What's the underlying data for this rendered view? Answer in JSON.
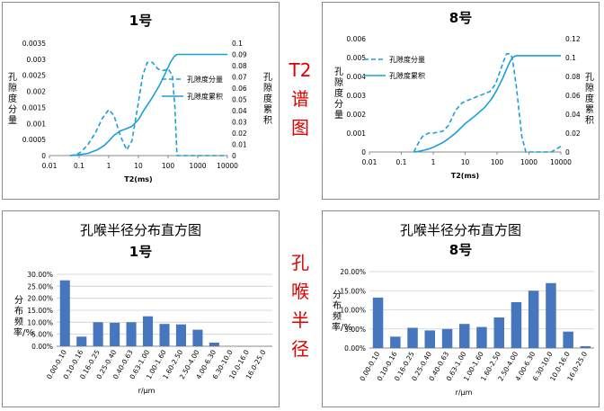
{
  "side_labels": {
    "t2": [
      "T2",
      "谱",
      "图"
    ],
    "pore": [
      "孔",
      "喉",
      "半",
      "径"
    ]
  },
  "colors": {
    "series": "#1a9fd9",
    "bar": "#4677be",
    "side_label": "#e00000"
  },
  "chart_data": [
    {
      "id": "t2-1",
      "type": "line",
      "title": "1号",
      "xlabel": "T2(ms)",
      "ylabel": "孔隙度分量",
      "y2label": "孔隙度累积",
      "xscale": "log",
      "xlim": [
        0.01,
        10000
      ],
      "xticks": [
        "0.01",
        "0.1",
        "1",
        "10",
        "100",
        "1000",
        "10000"
      ],
      "ylim": [
        0,
        0.0035
      ],
      "yticks": [
        "0",
        "0.0005",
        "0.001",
        "0.0015",
        "0.002",
        "0.0025",
        "0.003",
        "0.0035"
      ],
      "y2lim": [
        0,
        0.1
      ],
      "y2ticks": [
        "0",
        "0.01",
        "0.02",
        "0.03",
        "0.04",
        "0.05",
        "0.06",
        "0.07",
        "0.08",
        "0.09",
        "0.1"
      ],
      "legend": [
        "孔隙度分量",
        "孔隙度累积"
      ],
      "series": [
        {
          "name": "孔隙度分量",
          "style": "dashed",
          "axis": "left",
          "x": [
            0.05,
            0.08,
            0.12,
            0.2,
            0.35,
            0.6,
            1.0,
            1.5,
            2.5,
            4.0,
            6.0,
            9.0,
            14,
            20,
            30,
            45,
            70,
            100,
            140,
            170,
            200,
            300,
            1000,
            10000
          ],
          "y": [
            0,
            3e-05,
            0.00012,
            0.00035,
            0.0007,
            0.00115,
            0.00143,
            0.00125,
            0.0006,
            0.00018,
            0.00045,
            0.0014,
            0.0025,
            0.0029,
            0.0029,
            0.0027,
            0.00265,
            0.0027,
            0.0025,
            0.0015,
            0,
            0,
            0,
            0
          ]
        },
        {
          "name": "孔隙度累积",
          "style": "solid",
          "axis": "right",
          "x": [
            0.05,
            0.1,
            0.2,
            0.4,
            0.7,
            1.0,
            1.5,
            2.5,
            4.0,
            6.0,
            10,
            15,
            20,
            30,
            50,
            80,
            120,
            160,
            200,
            300,
            10000
          ],
          "y": [
            0,
            0.0008,
            0.002,
            0.005,
            0.009,
            0.013,
            0.018,
            0.022,
            0.024,
            0.026,
            0.032,
            0.04,
            0.045,
            0.052,
            0.062,
            0.073,
            0.083,
            0.088,
            0.09,
            0.09,
            0.09
          ]
        }
      ]
    },
    {
      "id": "t2-8",
      "type": "line",
      "title": "8号",
      "xlabel": "T2(ms)",
      "ylabel": "孔隙度分量",
      "y2label": "孔隙度累积",
      "xscale": "log",
      "xlim": [
        0.01,
        10000
      ],
      "xticks": [
        "0.01",
        "0.1",
        "1",
        "10",
        "100",
        "1000",
        "10000"
      ],
      "ylim": [
        0,
        0.006
      ],
      "yticks": [
        "0",
        "0.001",
        "0.002",
        "0.003",
        "0.004",
        "0.005",
        "0.006"
      ],
      "y2lim": [
        0,
        0.12
      ],
      "y2ticks": [
        "0",
        "0.02",
        "0.04",
        "0.06",
        "0.08",
        "0.1",
        "0.12"
      ],
      "legend": [
        "孔隙度分量",
        "孔隙度累积"
      ],
      "series": [
        {
          "name": "孔隙度分量",
          "style": "dashed",
          "axis": "left",
          "x": [
            0.25,
            0.3,
            0.45,
            0.7,
            1.0,
            2.0,
            3.0,
            5.0,
            8.0,
            15,
            30,
            60,
            90,
            120,
            160,
            200,
            250,
            300,
            400,
            600,
            800,
            1000,
            5000,
            10000
          ],
          "y": [
            0,
            0.0003,
            0.0008,
            0.001,
            0.001,
            0.0011,
            0.0014,
            0.0022,
            0.0026,
            0.0028,
            0.003,
            0.0032,
            0.0036,
            0.0042,
            0.0048,
            0.0052,
            0.0052,
            0.005,
            0.0035,
            0.0008,
            0,
            0,
            0,
            0.0003
          ]
        },
        {
          "name": "孔隙度累积",
          "style": "solid",
          "axis": "right",
          "x": [
            0.25,
            0.4,
            0.7,
            1.0,
            2.0,
            3.0,
            5.0,
            10,
            20,
            40,
            70,
            100,
            150,
            200,
            250,
            300,
            400,
            600,
            1000,
            10000
          ],
          "y": [
            0,
            0.001,
            0.003,
            0.005,
            0.01,
            0.014,
            0.02,
            0.03,
            0.038,
            0.047,
            0.057,
            0.066,
            0.078,
            0.088,
            0.095,
            0.1,
            0.102,
            0.102,
            0.102,
            0.102
          ]
        }
      ]
    },
    {
      "id": "pore-1",
      "type": "bar",
      "title": "孔喉半径分布直方图",
      "subtitle": "1号",
      "xlabel": "r/μm",
      "ylabel": "分布频率/%",
      "ylim": [
        0,
        30
      ],
      "yticks": [
        "0.00%",
        "5.00%",
        "10.00%",
        "15.00%",
        "20.00%",
        "25.00%",
        "30.00%"
      ],
      "categories": [
        "0.00-0.10",
        "0.10-0.16",
        "0.16-0.25",
        "0.25-0.40",
        "0.40-0.63",
        "0.63-1.00",
        "1.00-1.60",
        "1.60-2.50",
        "2.50-4.00",
        "4.00-6.30",
        "6.30-10.0",
        "10.0-16.0",
        "16.0-25.0"
      ],
      "values": [
        27.5,
        4.0,
        10.0,
        9.8,
        10.0,
        12.5,
        9.3,
        9.1,
        6.9,
        1.5,
        0,
        0,
        0
      ]
    },
    {
      "id": "pore-8",
      "type": "bar",
      "title": "孔喉半径分布直方图",
      "subtitle": "8号",
      "xlabel": "r/μm",
      "ylabel": "分布频率/%",
      "ylim": [
        0,
        20
      ],
      "yticks": [
        "0.00%",
        "5.00%",
        "10.00%",
        "15.00%",
        "20.00%"
      ],
      "categories": [
        "0.00-0.10",
        "0.10-0.16",
        "0.16-0.25",
        "0.25-0.40",
        "0.40-0.63",
        "0.63-1.00",
        "1.00-1.60",
        "1.60-2.50",
        "2.50-4.00",
        "4.00-6.30",
        "6.30-10.0",
        "10.0-16.0",
        "16.0-25.0"
      ],
      "values": [
        13.2,
        3.0,
        5.3,
        4.6,
        5.0,
        6.3,
        5.5,
        8.0,
        12.0,
        15.0,
        17.0,
        4.3,
        0.5
      ]
    }
  ]
}
